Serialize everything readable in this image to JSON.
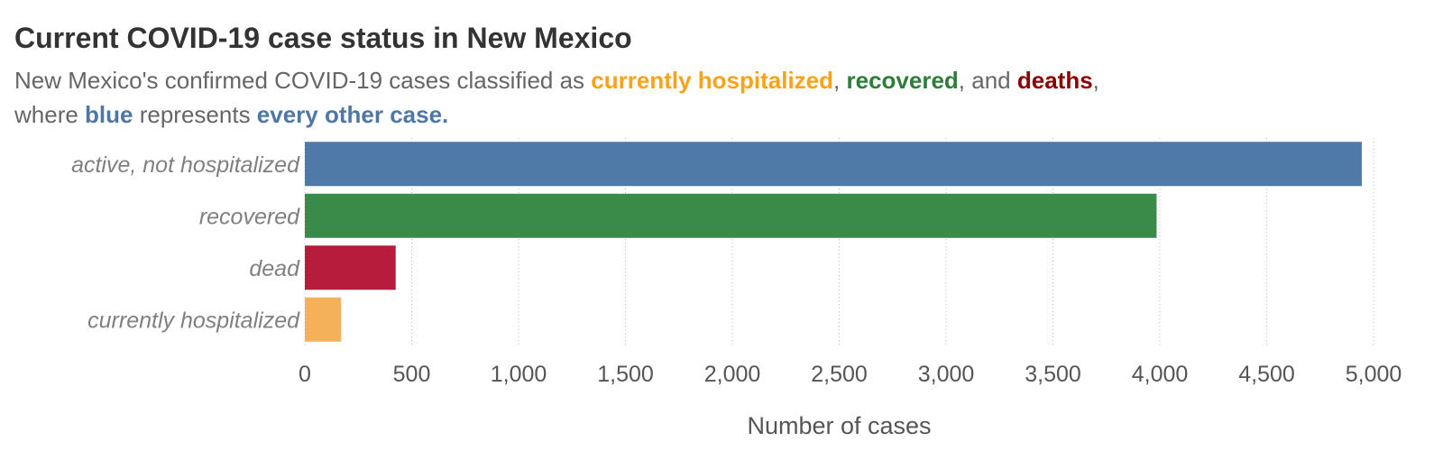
{
  "title": "Current COVID-19 case status in New Mexico",
  "subtitle": {
    "line1_prefix": "New Mexico's confirmed COVID-19 cases classified as ",
    "hospitalized_text": "currently hospitalized",
    "sep1": ", ",
    "recovered_text": "recovered",
    "sep2": ", and ",
    "deaths_text": "deaths",
    "line1_suffix": ",",
    "line2_prefix": "where ",
    "blue_text": "blue",
    "line2_mid": " represents ",
    "other_text": "every other case."
  },
  "colors": {
    "hospitalized": "#F9A31A",
    "recovered": "#2F7D3A",
    "deaths": "#8B0000",
    "blue": "#4F77A6"
  },
  "chart_data": {
    "type": "bar",
    "orientation": "horizontal",
    "categories": [
      "active, not hospitalized",
      "recovered",
      "dead",
      "currently hospitalized"
    ],
    "values": [
      4945,
      3985,
      425,
      170
    ],
    "colors": [
      "#4F79A7",
      "#3A8B4A",
      "#B71C3C",
      "#F5B15A"
    ],
    "xlabel": "Number of cases",
    "ylabel": "",
    "xlim": [
      0,
      5000
    ],
    "xticks": [
      0,
      500,
      1000,
      1500,
      2000,
      2500,
      3000,
      3500,
      4000,
      4500,
      5000
    ],
    "xtick_labels": [
      "0",
      "500",
      "1,000",
      "1,500",
      "2,000",
      "2,500",
      "3,000",
      "3,500",
      "4,000",
      "4,500",
      "5,000"
    ],
    "grid": "vertical dotted"
  }
}
